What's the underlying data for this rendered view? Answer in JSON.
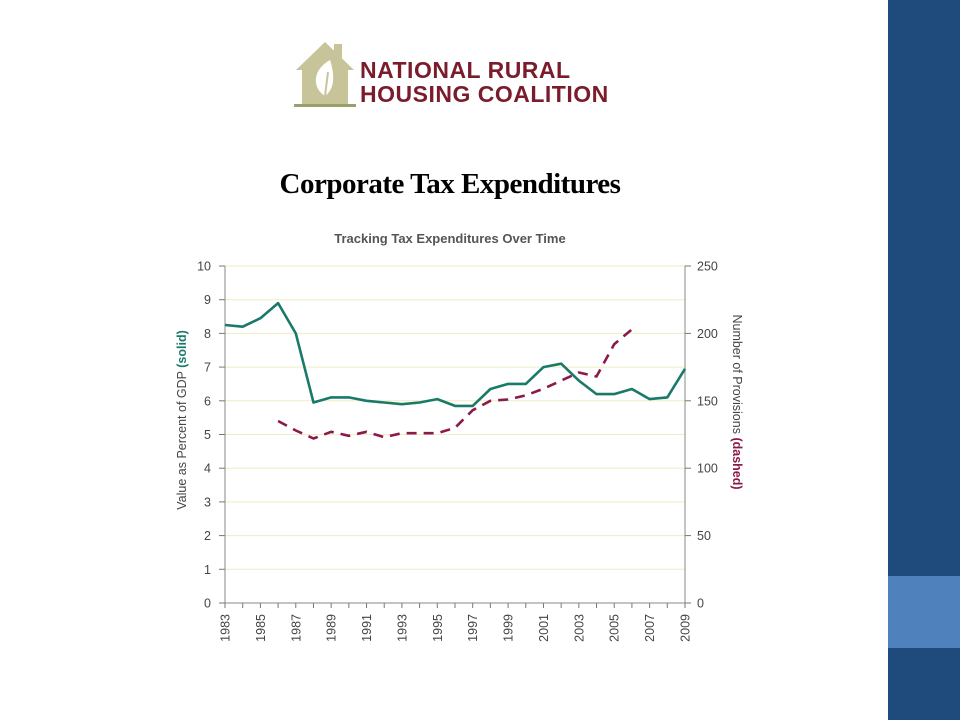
{
  "logo": {
    "line1": "NATIONAL RURAL",
    "line2": "HOUSING COALITION",
    "icon": "house-leaf-icon"
  },
  "slide": {
    "title": "Corporate Tax Expenditures"
  },
  "theme": {
    "sidebar": "#1f4a7c",
    "sidebar_accent": "#4f81bd",
    "logo_text": "#7a1c2c",
    "logo_house": "#c8c49a",
    "solid_line": "#1a7a6a",
    "dashed_line": "#8b1a4a",
    "grid": "#eeeec0"
  },
  "chart_data": {
    "type": "line",
    "title": "Tracking Tax Expenditures Over Time",
    "ylabel_left": "Value as Percent of GDP",
    "ylabel_left_tag": "(solid)",
    "ylabel_right": "Number of Provisions",
    "ylabel_right_tag": "(dashed)",
    "ylim_left": [
      0,
      10
    ],
    "ylim_right": [
      0,
      250
    ],
    "yticks_left": [
      "0",
      "1",
      "2",
      "3",
      "4",
      "5",
      "6",
      "7",
      "8",
      "9",
      "10"
    ],
    "yticks_right": [
      "0",
      "50",
      "100",
      "150",
      "200",
      "250"
    ],
    "xlim": [
      1983,
      2009
    ],
    "xtick_labels": [
      "1983",
      "1985",
      "1987",
      "1989",
      "1991",
      "1993",
      "1995",
      "1997",
      "1999",
      "2001",
      "2003",
      "2005",
      "2007",
      "2009"
    ],
    "grid": true,
    "series": [
      {
        "axis": "left",
        "style": "solid",
        "x": [
          1983,
          1984,
          1985,
          1986,
          1987,
          1988,
          1989,
          1990,
          1991,
          1992,
          1993,
          1994,
          1995,
          1996,
          1997,
          1998,
          1999,
          2000,
          2001,
          2002,
          2003,
          2004,
          2005,
          2006,
          2007,
          2008,
          2009
        ],
        "values": [
          8.25,
          8.2,
          8.45,
          8.9,
          8.0,
          5.95,
          6.1,
          6.1,
          6.0,
          5.95,
          5.9,
          5.95,
          6.05,
          5.85,
          5.85,
          6.35,
          6.5,
          6.5,
          7.0,
          7.1,
          6.6,
          6.2,
          6.2,
          6.35,
          6.05,
          6.1,
          6.95
        ]
      },
      {
        "axis": "right",
        "style": "dashed",
        "x": [
          1986,
          1987,
          1988,
          1989,
          1990,
          1991,
          1992,
          1993,
          1994,
          1995,
          1996,
          1997,
          1998,
          1999,
          2000,
          2001,
          2002,
          2003,
          2004,
          2005,
          2006
        ],
        "values": [
          135,
          128,
          122,
          127,
          124,
          127,
          123,
          126,
          126,
          126,
          130,
          143,
          150,
          151,
          154,
          159,
          165,
          171,
          168,
          192,
          203
        ]
      }
    ]
  }
}
